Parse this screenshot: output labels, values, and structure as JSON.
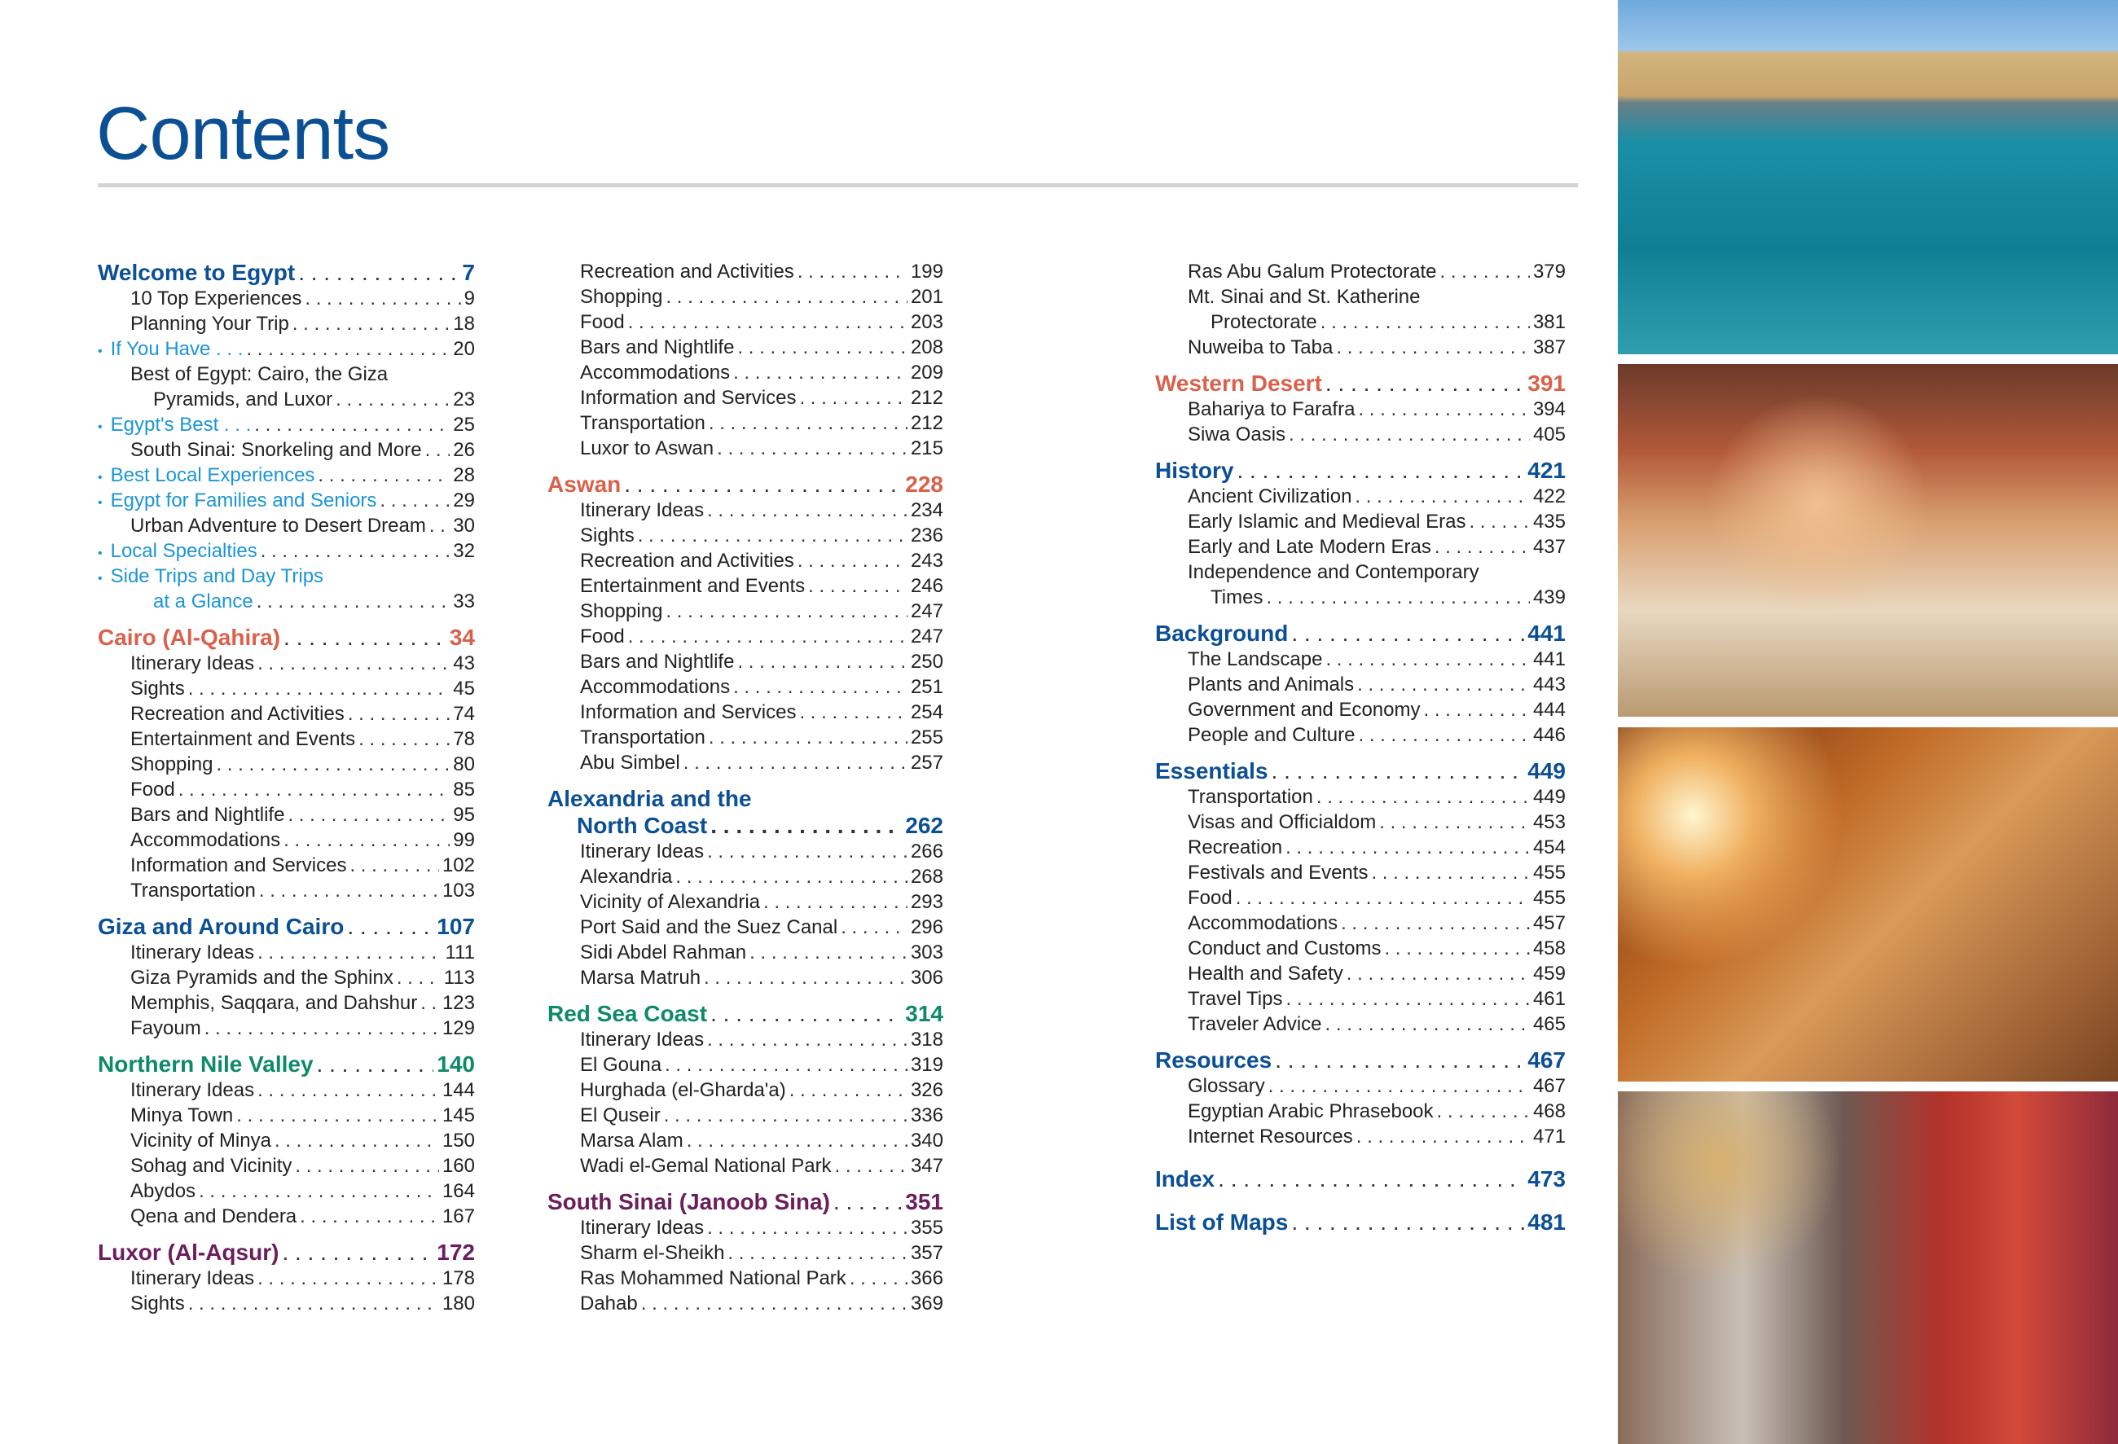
{
  "title": "Contents",
  "colors": {
    "blue": "#0b4f95",
    "orange": "#d9614a",
    "green": "#0d8a6a",
    "purple": "#6b1d5c",
    "highlight": "#1a96d4",
    "rule": "#d3d3d3"
  },
  "columns": [
    [
      {
        "k": "h",
        "text": "Welcome to Egypt",
        "page": "7",
        "color": "blue"
      },
      {
        "k": "i",
        "text": "10 Top Experiences",
        "page": "9"
      },
      {
        "k": "i",
        "text": "Planning Your Trip",
        "page": "18"
      },
      {
        "k": "hl",
        "text": "If You Have . . .",
        "page": "20"
      },
      {
        "k": "i",
        "text": "Best of Egypt: Cairo, the Giza",
        "page": ""
      },
      {
        "k": "c",
        "text": "Pyramids, and Luxor",
        "page": "23"
      },
      {
        "k": "hl",
        "text": "Egypt's Best . . .",
        "page": "25"
      },
      {
        "k": "i",
        "text": "South Sinai: Snorkeling and More",
        "page": "26"
      },
      {
        "k": "hl",
        "text": "Best Local Experiences",
        "page": "28"
      },
      {
        "k": "hl",
        "text": "Egypt for Families and Seniors",
        "page": "29"
      },
      {
        "k": "i",
        "text": "Urban Adventure to Desert Dream",
        "page": "30"
      },
      {
        "k": "hl",
        "text": "Local Specialties",
        "page": "32"
      },
      {
        "k": "hl",
        "text": "Side Trips and Day Trips",
        "page": ""
      },
      {
        "k": "hlc",
        "text": "at a Glance",
        "page": "33"
      },
      {
        "k": "h",
        "text": "Cairo (Al-Qahira)",
        "page": "34",
        "color": "orange"
      },
      {
        "k": "i",
        "text": "Itinerary Ideas",
        "page": "43"
      },
      {
        "k": "i",
        "text": "Sights",
        "page": "45"
      },
      {
        "k": "i",
        "text": "Recreation and Activities",
        "page": "74"
      },
      {
        "k": "i",
        "text": "Entertainment and Events",
        "page": "78"
      },
      {
        "k": "i",
        "text": "Shopping",
        "page": "80"
      },
      {
        "k": "i",
        "text": "Food",
        "page": "85"
      },
      {
        "k": "i",
        "text": "Bars and Nightlife",
        "page": "95"
      },
      {
        "k": "i",
        "text": "Accommodations",
        "page": "99"
      },
      {
        "k": "i",
        "text": "Information and Services",
        "page": "102"
      },
      {
        "k": "i",
        "text": "Transportation",
        "page": "103"
      },
      {
        "k": "h",
        "text": "Giza and Around Cairo",
        "page": "107",
        "color": "blue"
      },
      {
        "k": "i",
        "text": "Itinerary Ideas",
        "page": "111"
      },
      {
        "k": "i",
        "text": "Giza Pyramids and the Sphinx",
        "page": "113"
      },
      {
        "k": "i",
        "text": "Memphis, Saqqara, and Dahshur",
        "page": "123"
      },
      {
        "k": "i",
        "text": "Fayoum",
        "page": "129"
      },
      {
        "k": "h",
        "text": "Northern Nile Valley",
        "page": "140",
        "color": "green"
      },
      {
        "k": "i",
        "text": "Itinerary Ideas",
        "page": "144"
      },
      {
        "k": "i",
        "text": "Minya Town",
        "page": "145"
      },
      {
        "k": "i",
        "text": "Vicinity of Minya",
        "page": "150"
      },
      {
        "k": "i",
        "text": "Sohag and Vicinity",
        "page": "160"
      },
      {
        "k": "i",
        "text": "Abydos",
        "page": "164"
      },
      {
        "k": "i",
        "text": "Qena and Dendera",
        "page": "167"
      },
      {
        "k": "h",
        "text": "Luxor (Al-Aqsur)",
        "page": "172",
        "color": "purple"
      },
      {
        "k": "i",
        "text": "Itinerary Ideas",
        "page": "178"
      },
      {
        "k": "i",
        "text": "Sights",
        "page": "180"
      }
    ],
    [
      {
        "k": "i",
        "text": "Recreation and Activities",
        "page": "199"
      },
      {
        "k": "i",
        "text": "Shopping",
        "page": "201"
      },
      {
        "k": "i",
        "text": "Food",
        "page": "203"
      },
      {
        "k": "i",
        "text": "Bars and Nightlife",
        "page": "208"
      },
      {
        "k": "i",
        "text": "Accommodations",
        "page": "209"
      },
      {
        "k": "i",
        "text": "Information and Services",
        "page": "212"
      },
      {
        "k": "i",
        "text": "Transportation",
        "page": "212"
      },
      {
        "k": "i",
        "text": "Luxor to Aswan",
        "page": "215"
      },
      {
        "k": "h",
        "text": "Aswan",
        "page": "228",
        "color": "orange"
      },
      {
        "k": "i",
        "text": "Itinerary Ideas",
        "page": "234"
      },
      {
        "k": "i",
        "text": "Sights",
        "page": "236"
      },
      {
        "k": "i",
        "text": "Recreation and Activities",
        "page": "243"
      },
      {
        "k": "i",
        "text": "Entertainment and Events",
        "page": "246"
      },
      {
        "k": "i",
        "text": "Shopping",
        "page": "247"
      },
      {
        "k": "i",
        "text": "Food",
        "page": "247"
      },
      {
        "k": "i",
        "text": "Bars and Nightlife",
        "page": "250"
      },
      {
        "k": "i",
        "text": "Accommodations",
        "page": "251"
      },
      {
        "k": "i",
        "text": "Information and Services",
        "page": "254"
      },
      {
        "k": "i",
        "text": "Transportation",
        "page": "255"
      },
      {
        "k": "i",
        "text": "Abu Simbel",
        "page": "257"
      },
      {
        "k": "h",
        "text": "Alexandria and the",
        "page": "",
        "color": "blue"
      },
      {
        "k": "hc",
        "text": "North Coast",
        "page": "262",
        "color": "blue"
      },
      {
        "k": "i",
        "text": "Itinerary Ideas",
        "page": "266"
      },
      {
        "k": "i",
        "text": "Alexandria",
        "page": "268"
      },
      {
        "k": "i",
        "text": "Vicinity of Alexandria",
        "page": "293"
      },
      {
        "k": "i",
        "text": "Port Said and the Suez Canal",
        "page": "296"
      },
      {
        "k": "i",
        "text": "Sidi Abdel Rahman",
        "page": "303"
      },
      {
        "k": "i",
        "text": "Marsa Matruh",
        "page": "306"
      },
      {
        "k": "h",
        "text": "Red Sea Coast",
        "page": "314",
        "color": "green"
      },
      {
        "k": "i",
        "text": "Itinerary Ideas",
        "page": "318"
      },
      {
        "k": "i",
        "text": "El Gouna",
        "page": "319"
      },
      {
        "k": "i",
        "text": "Hurghada (el-Gharda'a)",
        "page": "326"
      },
      {
        "k": "i",
        "text": "El Quseir",
        "page": "336"
      },
      {
        "k": "i",
        "text": "Marsa Alam",
        "page": "340"
      },
      {
        "k": "i",
        "text": "Wadi el-Gemal National Park",
        "page": "347"
      },
      {
        "k": "h",
        "text": "South Sinai (Janoob Sina)",
        "page": "351",
        "color": "purple"
      },
      {
        "k": "i",
        "text": "Itinerary Ideas",
        "page": "355"
      },
      {
        "k": "i",
        "text": "Sharm el-Sheikh",
        "page": "357"
      },
      {
        "k": "i",
        "text": "Ras Mohammed National Park",
        "page": "366"
      },
      {
        "k": "i",
        "text": "Dahab",
        "page": "369"
      }
    ],
    [
      {
        "k": "i",
        "text": "Ras Abu Galum Protectorate",
        "page": "379"
      },
      {
        "k": "i",
        "text": "Mt. Sinai and St. Katherine",
        "page": ""
      },
      {
        "k": "c",
        "text": "Protectorate",
        "page": "381"
      },
      {
        "k": "i",
        "text": "Nuweiba to Taba",
        "page": "387"
      },
      {
        "k": "h",
        "text": "Western Desert",
        "page": "391",
        "color": "orange"
      },
      {
        "k": "i",
        "text": "Bahariya to Farafra",
        "page": "394"
      },
      {
        "k": "i",
        "text": "Siwa Oasis",
        "page": "405"
      },
      {
        "k": "h",
        "text": "History",
        "page": "421",
        "color": "blue"
      },
      {
        "k": "i",
        "text": "Ancient Civilization",
        "page": "422"
      },
      {
        "k": "i",
        "text": "Early Islamic and Medieval Eras",
        "page": "435"
      },
      {
        "k": "i",
        "text": "Early and Late Modern Eras",
        "page": "437"
      },
      {
        "k": "i",
        "text": "Independence and Contemporary",
        "page": ""
      },
      {
        "k": "c",
        "text": "Times",
        "page": "439"
      },
      {
        "k": "h",
        "text": "Background",
        "page": "441",
        "color": "blue"
      },
      {
        "k": "i",
        "text": "The Landscape",
        "page": "441"
      },
      {
        "k": "i",
        "text": "Plants and Animals",
        "page": "443"
      },
      {
        "k": "i",
        "text": "Government and Economy",
        "page": "444"
      },
      {
        "k": "i",
        "text": "People and Culture",
        "page": "446"
      },
      {
        "k": "h",
        "text": "Essentials",
        "page": "449",
        "color": "blue"
      },
      {
        "k": "i",
        "text": "Transportation",
        "page": "449"
      },
      {
        "k": "i",
        "text": "Visas and Officialdom",
        "page": "453"
      },
      {
        "k": "i",
        "text": "Recreation",
        "page": "454"
      },
      {
        "k": "i",
        "text": "Festivals and Events",
        "page": "455"
      },
      {
        "k": "i",
        "text": "Food",
        "page": "455"
      },
      {
        "k": "i",
        "text": "Accommodations",
        "page": "457"
      },
      {
        "k": "i",
        "text": "Conduct and Customs",
        "page": "458"
      },
      {
        "k": "i",
        "text": "Health and Safety",
        "page": "459"
      },
      {
        "k": "i",
        "text": "Travel Tips",
        "page": "461"
      },
      {
        "k": "i",
        "text": "Traveler Advice",
        "page": "465"
      },
      {
        "k": "h",
        "text": "Resources",
        "page": "467",
        "color": "blue"
      },
      {
        "k": "i",
        "text": "Glossary",
        "page": "467"
      },
      {
        "k": "i",
        "text": "Egyptian Arabic Phrasebook",
        "page": "468"
      },
      {
        "k": "i",
        "text": "Internet Resources",
        "page": "471"
      },
      {
        "k": "h",
        "text": "Index",
        "page": "473",
        "color": "blue",
        "gap": true
      },
      {
        "k": "h",
        "text": "List of Maps",
        "page": "481",
        "color": "blue",
        "gap": true
      }
    ]
  ],
  "photos": [
    "fortress-harbor-photo",
    "tea-cafe-photo",
    "temple-relief-photo",
    "market-bicycle-photo"
  ]
}
